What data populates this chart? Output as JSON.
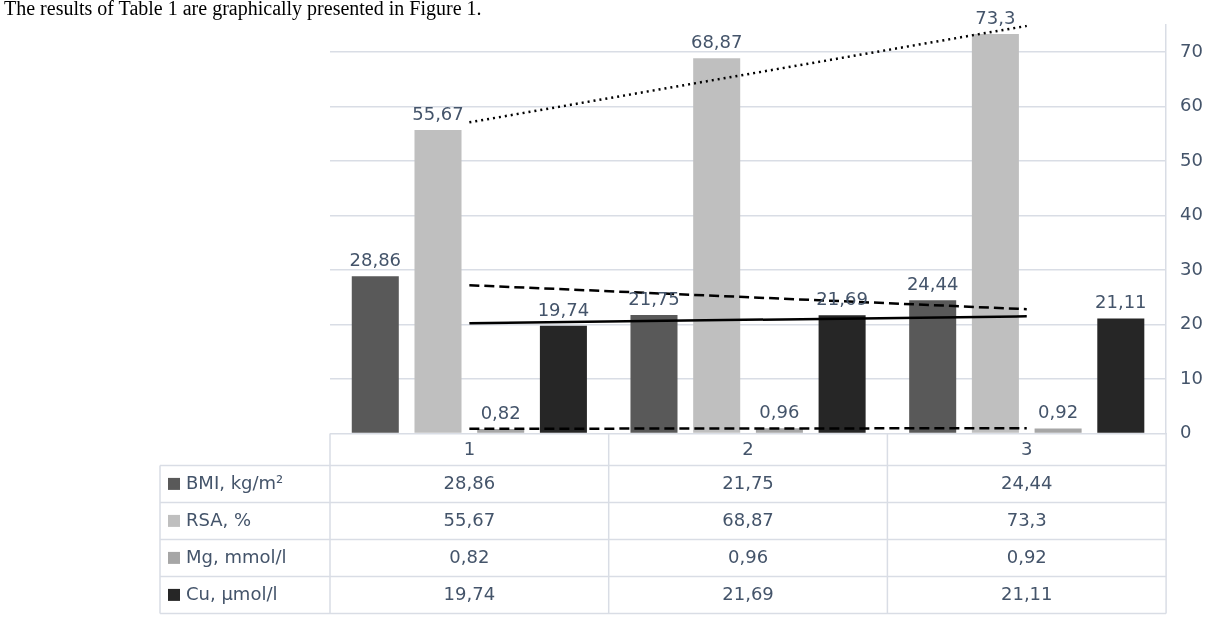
{
  "chart_data": {
    "type": "bar",
    "annotations": [
      "The results of Table 1 are graphically presented in Figure 1."
    ],
    "categories": [
      "1",
      "2",
      "3"
    ],
    "series": [
      {
        "name": "BMI, kg/m²",
        "color": "#595959",
        "values": [
          28.86,
          21.75,
          24.44
        ],
        "value_labels": [
          "28,86",
          "21,75",
          "24,44"
        ]
      },
      {
        "name": "RSA, %",
        "color": "#bfbfbf",
        "values": [
          55.67,
          68.87,
          73.3
        ],
        "value_labels": [
          "55,67",
          "68,87",
          "73,3"
        ]
      },
      {
        "name": "Mg, mmol/l",
        "color": "#a6a6a6",
        "values": [
          0.82,
          0.96,
          0.92
        ],
        "value_labels": [
          "0,82",
          "0,96",
          "0,92"
        ]
      },
      {
        "name": "Cu, µmol/l",
        "color": "#262626",
        "values": [
          19.74,
          21.69,
          21.11
        ],
        "value_labels": [
          "19,74",
          "21,69",
          "21,11"
        ]
      },
      {
        "type": "line",
        "color": "#000000",
        "line_style": "dashed",
        "x": [
          "1",
          "3"
        ],
        "values": [
          27.2,
          22.8
        ]
      },
      {
        "type": "line",
        "color": "#000000",
        "line_style": "dotted",
        "x": [
          "1",
          "3"
        ],
        "values": [
          57.1,
          74.8
        ]
      },
      {
        "type": "line",
        "color": "#000000",
        "line_style": "dashed",
        "x": [
          "1",
          "3"
        ],
        "values": [
          0.85,
          0.95
        ]
      },
      {
        "type": "line",
        "color": "#000000",
        "line_style": "solid",
        "x": [
          "1",
          "3"
        ],
        "values": [
          20.2,
          21.5
        ]
      }
    ],
    "ylim": [
      0,
      75
    ],
    "yticks": [
      0,
      10,
      20,
      30,
      40,
      50,
      60,
      70
    ],
    "grid": "y",
    "marker": "none",
    "legend": "bottom"
  }
}
